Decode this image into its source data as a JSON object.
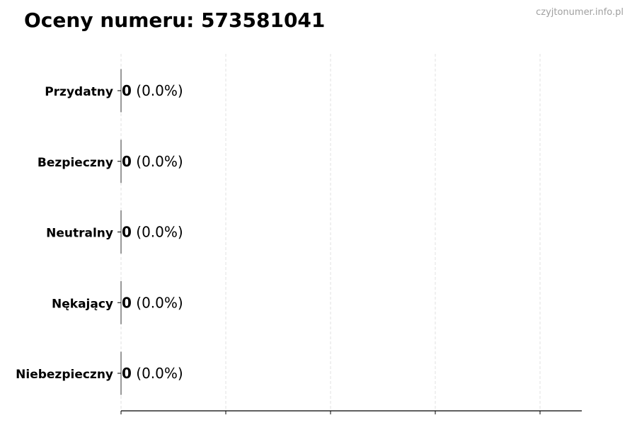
{
  "title": "Oceny numeru: 573581041",
  "watermark": "czyjtonumer.info.pl",
  "chart_data": {
    "type": "bar",
    "orientation": "horizontal",
    "categories": [
      "Przydatny",
      "Bezpieczny",
      "Neutralny",
      "Nękający",
      "Niebezpieczny"
    ],
    "values": [
      0,
      0,
      0,
      0,
      0
    ],
    "data_labels": [
      {
        "count": "0",
        "percent": "(0.0%)"
      },
      {
        "count": "0",
        "percent": "(0.0%)"
      },
      {
        "count": "0",
        "percent": "(0.0%)"
      },
      {
        "count": "0",
        "percent": "(0.0%)"
      },
      {
        "count": "0",
        "percent": "(0.0%)"
      }
    ],
    "xlabel": "",
    "ylabel": "",
    "x_tick_labels_shown": false,
    "grid": "vertical dashed",
    "colors": {
      "grid": "#d9d9d9",
      "axis": "#000000",
      "bar_edge": "#333333"
    }
  }
}
